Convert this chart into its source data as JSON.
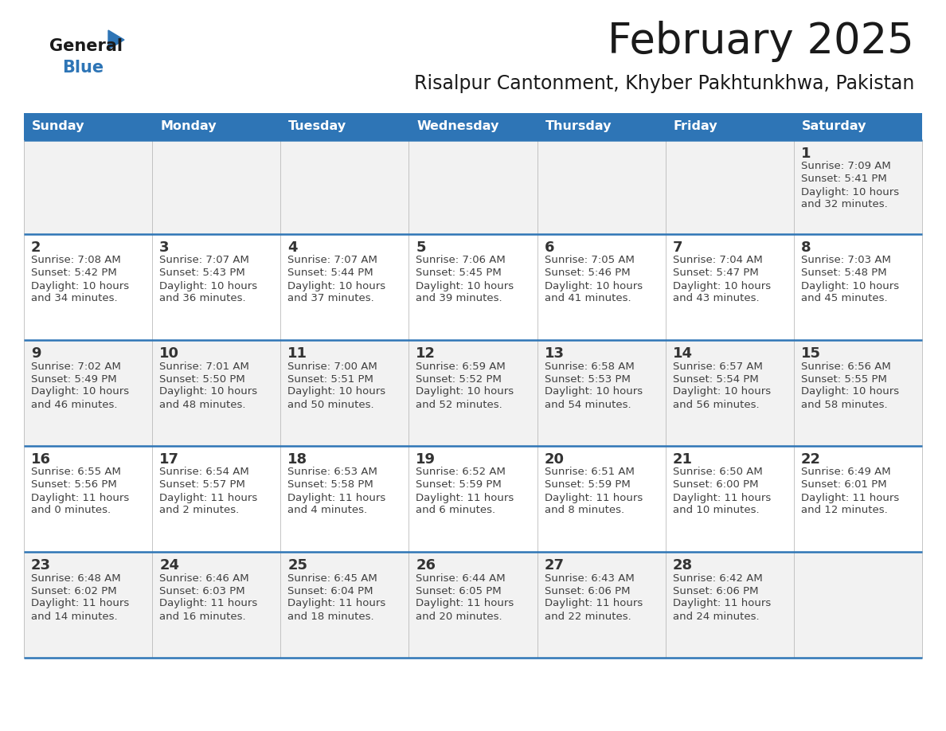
{
  "title": "February 2025",
  "subtitle": "Risalpur Cantonment, Khyber Pakhtunkhwa, Pakistan",
  "header_bg": "#2E75B6",
  "header_text_color": "#FFFFFF",
  "day_names": [
    "Sunday",
    "Monday",
    "Tuesday",
    "Wednesday",
    "Thursday",
    "Friday",
    "Saturday"
  ],
  "row_bg_odd": "#F2F2F2",
  "row_bg_even": "#FFFFFF",
  "divider_color": "#2E75B6",
  "cell_text_color": "#404040",
  "day_number_color": "#333333",
  "title_color": "#1A1A1A",
  "subtitle_color": "#1A1A1A",
  "calendar": [
    [
      {
        "day": null,
        "sunrise": null,
        "sunset": null,
        "daylight": null
      },
      {
        "day": null,
        "sunrise": null,
        "sunset": null,
        "daylight": null
      },
      {
        "day": null,
        "sunrise": null,
        "sunset": null,
        "daylight": null
      },
      {
        "day": null,
        "sunrise": null,
        "sunset": null,
        "daylight": null
      },
      {
        "day": null,
        "sunrise": null,
        "sunset": null,
        "daylight": null
      },
      {
        "day": null,
        "sunrise": null,
        "sunset": null,
        "daylight": null
      },
      {
        "day": 1,
        "sunrise": "7:09 AM",
        "sunset": "5:41 PM",
        "daylight_line1": "Daylight: 10 hours",
        "daylight_line2": "and 32 minutes."
      }
    ],
    [
      {
        "day": 2,
        "sunrise": "7:08 AM",
        "sunset": "5:42 PM",
        "daylight_line1": "Daylight: 10 hours",
        "daylight_line2": "and 34 minutes."
      },
      {
        "day": 3,
        "sunrise": "7:07 AM",
        "sunset": "5:43 PM",
        "daylight_line1": "Daylight: 10 hours",
        "daylight_line2": "and 36 minutes."
      },
      {
        "day": 4,
        "sunrise": "7:07 AM",
        "sunset": "5:44 PM",
        "daylight_line1": "Daylight: 10 hours",
        "daylight_line2": "and 37 minutes."
      },
      {
        "day": 5,
        "sunrise": "7:06 AM",
        "sunset": "5:45 PM",
        "daylight_line1": "Daylight: 10 hours",
        "daylight_line2": "and 39 minutes."
      },
      {
        "day": 6,
        "sunrise": "7:05 AM",
        "sunset": "5:46 PM",
        "daylight_line1": "Daylight: 10 hours",
        "daylight_line2": "and 41 minutes."
      },
      {
        "day": 7,
        "sunrise": "7:04 AM",
        "sunset": "5:47 PM",
        "daylight_line1": "Daylight: 10 hours",
        "daylight_line2": "and 43 minutes."
      },
      {
        "day": 8,
        "sunrise": "7:03 AM",
        "sunset": "5:48 PM",
        "daylight_line1": "Daylight: 10 hours",
        "daylight_line2": "and 45 minutes."
      }
    ],
    [
      {
        "day": 9,
        "sunrise": "7:02 AM",
        "sunset": "5:49 PM",
        "daylight_line1": "Daylight: 10 hours",
        "daylight_line2": "and 46 minutes."
      },
      {
        "day": 10,
        "sunrise": "7:01 AM",
        "sunset": "5:50 PM",
        "daylight_line1": "Daylight: 10 hours",
        "daylight_line2": "and 48 minutes."
      },
      {
        "day": 11,
        "sunrise": "7:00 AM",
        "sunset": "5:51 PM",
        "daylight_line1": "Daylight: 10 hours",
        "daylight_line2": "and 50 minutes."
      },
      {
        "day": 12,
        "sunrise": "6:59 AM",
        "sunset": "5:52 PM",
        "daylight_line1": "Daylight: 10 hours",
        "daylight_line2": "and 52 minutes."
      },
      {
        "day": 13,
        "sunrise": "6:58 AM",
        "sunset": "5:53 PM",
        "daylight_line1": "Daylight: 10 hours",
        "daylight_line2": "and 54 minutes."
      },
      {
        "day": 14,
        "sunrise": "6:57 AM",
        "sunset": "5:54 PM",
        "daylight_line1": "Daylight: 10 hours",
        "daylight_line2": "and 56 minutes."
      },
      {
        "day": 15,
        "sunrise": "6:56 AM",
        "sunset": "5:55 PM",
        "daylight_line1": "Daylight: 10 hours",
        "daylight_line2": "and 58 minutes."
      }
    ],
    [
      {
        "day": 16,
        "sunrise": "6:55 AM",
        "sunset": "5:56 PM",
        "daylight_line1": "Daylight: 11 hours",
        "daylight_line2": "and 0 minutes."
      },
      {
        "day": 17,
        "sunrise": "6:54 AM",
        "sunset": "5:57 PM",
        "daylight_line1": "Daylight: 11 hours",
        "daylight_line2": "and 2 minutes."
      },
      {
        "day": 18,
        "sunrise": "6:53 AM",
        "sunset": "5:58 PM",
        "daylight_line1": "Daylight: 11 hours",
        "daylight_line2": "and 4 minutes."
      },
      {
        "day": 19,
        "sunrise": "6:52 AM",
        "sunset": "5:59 PM",
        "daylight_line1": "Daylight: 11 hours",
        "daylight_line2": "and 6 minutes."
      },
      {
        "day": 20,
        "sunrise": "6:51 AM",
        "sunset": "5:59 PM",
        "daylight_line1": "Daylight: 11 hours",
        "daylight_line2": "and 8 minutes."
      },
      {
        "day": 21,
        "sunrise": "6:50 AM",
        "sunset": "6:00 PM",
        "daylight_line1": "Daylight: 11 hours",
        "daylight_line2": "and 10 minutes."
      },
      {
        "day": 22,
        "sunrise": "6:49 AM",
        "sunset": "6:01 PM",
        "daylight_line1": "Daylight: 11 hours",
        "daylight_line2": "and 12 minutes."
      }
    ],
    [
      {
        "day": 23,
        "sunrise": "6:48 AM",
        "sunset": "6:02 PM",
        "daylight_line1": "Daylight: 11 hours",
        "daylight_line2": "and 14 minutes."
      },
      {
        "day": 24,
        "sunrise": "6:46 AM",
        "sunset": "6:03 PM",
        "daylight_line1": "Daylight: 11 hours",
        "daylight_line2": "and 16 minutes."
      },
      {
        "day": 25,
        "sunrise": "6:45 AM",
        "sunset": "6:04 PM",
        "daylight_line1": "Daylight: 11 hours",
        "daylight_line2": "and 18 minutes."
      },
      {
        "day": 26,
        "sunrise": "6:44 AM",
        "sunset": "6:05 PM",
        "daylight_line1": "Daylight: 11 hours",
        "daylight_line2": "and 20 minutes."
      },
      {
        "day": 27,
        "sunrise": "6:43 AM",
        "sunset": "6:06 PM",
        "daylight_line1": "Daylight: 11 hours",
        "daylight_line2": "and 22 minutes."
      },
      {
        "day": 28,
        "sunrise": "6:42 AM",
        "sunset": "6:06 PM",
        "daylight_line1": "Daylight: 11 hours",
        "daylight_line2": "and 24 minutes."
      },
      {
        "day": null,
        "sunrise": null,
        "sunset": null,
        "daylight_line1": null,
        "daylight_line2": null
      }
    ]
  ],
  "logo_general_color": "#1A1A1A",
  "logo_blue_color": "#2E75B6",
  "logo_triangle_color": "#2E75B6",
  "fig_width": 11.88,
  "fig_height": 9.18,
  "dpi": 100
}
